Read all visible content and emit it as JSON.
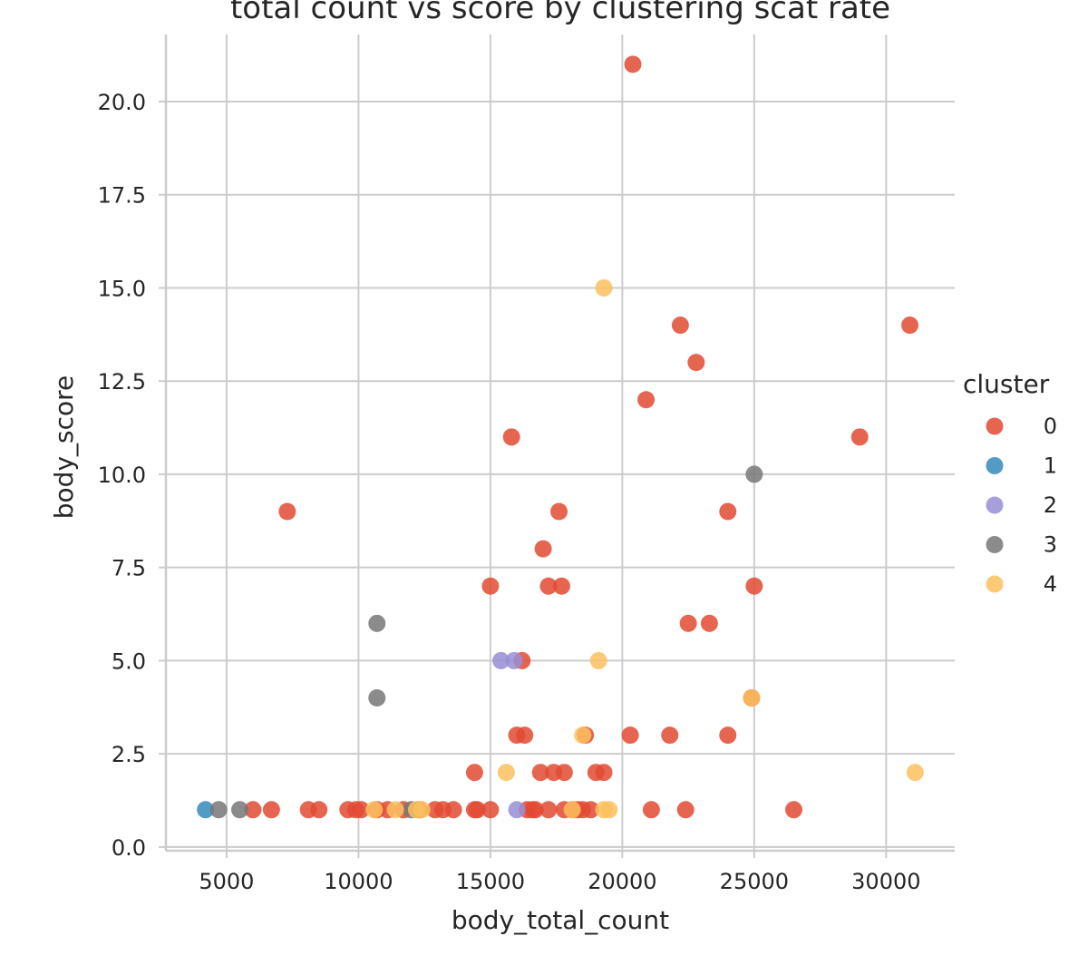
{
  "chart_data": {
    "type": "scatter",
    "title": "total count vs score by clustering scat rate",
    "xlabel": "body_total_count",
    "ylabel": "body_score",
    "xlim": [
      2700,
      32600
    ],
    "ylim": [
      -0.1,
      21.8
    ],
    "xticks": [
      5000,
      10000,
      15000,
      20000,
      25000,
      30000
    ],
    "yticks": [
      0.0,
      2.5,
      5.0,
      7.5,
      10.0,
      12.5,
      15.0,
      17.5,
      20.0
    ],
    "xtick_labels": [
      "5000",
      "10000",
      "15000",
      "20000",
      "25000",
      "30000"
    ],
    "ytick_labels": [
      "0.0",
      "2.5",
      "5.0",
      "7.5",
      "10.0",
      "12.5",
      "15.0",
      "17.5",
      "20.0"
    ],
    "grid": true,
    "legend": {
      "title": "cluster",
      "placement": "right"
    },
    "series": [
      {
        "name": "0",
        "color": "#e24a33",
        "points": [
          [
            7300,
            9
          ],
          [
            6000,
            1
          ],
          [
            6700,
            1
          ],
          [
            8100,
            1
          ],
          [
            8500,
            1
          ],
          [
            9600,
            1
          ],
          [
            9900,
            1
          ],
          [
            10100,
            1
          ],
          [
            10700,
            1
          ],
          [
            11100,
            1
          ],
          [
            11700,
            1
          ],
          [
            12300,
            1
          ],
          [
            12900,
            1
          ],
          [
            13200,
            1
          ],
          [
            13600,
            1
          ],
          [
            14400,
            1
          ],
          [
            14500,
            1
          ],
          [
            15000,
            1
          ],
          [
            14400,
            2
          ],
          [
            15000,
            7
          ],
          [
            15800,
            11
          ],
          [
            16000,
            3
          ],
          [
            16200,
            5
          ],
          [
            16300,
            3
          ],
          [
            16400,
            1
          ],
          [
            16600,
            1
          ],
          [
            16700,
            1
          ],
          [
            16900,
            2
          ],
          [
            17000,
            8
          ],
          [
            17200,
            1
          ],
          [
            17200,
            7
          ],
          [
            17400,
            2
          ],
          [
            17600,
            9
          ],
          [
            17700,
            7
          ],
          [
            17800,
            2
          ],
          [
            17800,
            1
          ],
          [
            18100,
            1
          ],
          [
            18300,
            1
          ],
          [
            18500,
            1
          ],
          [
            18600,
            3
          ],
          [
            18800,
            1
          ],
          [
            19000,
            2
          ],
          [
            19300,
            2
          ],
          [
            20300,
            3
          ],
          [
            20400,
            21
          ],
          [
            20900,
            12
          ],
          [
            21100,
            1
          ],
          [
            21800,
            3
          ],
          [
            22200,
            14
          ],
          [
            22500,
            6
          ],
          [
            22400,
            1
          ],
          [
            22800,
            13
          ],
          [
            23300,
            6
          ],
          [
            24000,
            9
          ],
          [
            24000,
            3
          ],
          [
            24900,
            4
          ],
          [
            25000,
            7
          ],
          [
            26500,
            1
          ],
          [
            29000,
            11
          ],
          [
            30900,
            14
          ]
        ]
      },
      {
        "name": "1",
        "color": "#348abd",
        "points": [
          [
            4200,
            1
          ]
        ]
      },
      {
        "name": "2",
        "color": "#988ed5",
        "points": [
          [
            15400,
            5
          ],
          [
            15900,
            5
          ],
          [
            16000,
            1
          ]
        ]
      },
      {
        "name": "3",
        "color": "#777777",
        "points": [
          [
            4700,
            1
          ],
          [
            5500,
            1
          ],
          [
            10700,
            6
          ],
          [
            10700,
            4
          ],
          [
            12000,
            1
          ],
          [
            25000,
            10
          ]
        ]
      },
      {
        "name": "4",
        "color": "#fbc15e",
        "points": [
          [
            10600,
            1
          ],
          [
            11400,
            1
          ],
          [
            12200,
            1
          ],
          [
            12400,
            1
          ],
          [
            15600,
            2
          ],
          [
            18100,
            1
          ],
          [
            18500,
            3
          ],
          [
            19100,
            5
          ],
          [
            19300,
            15
          ],
          [
            19300,
            1
          ],
          [
            19500,
            1
          ],
          [
            24900,
            4
          ],
          [
            31100,
            2
          ]
        ]
      }
    ]
  }
}
